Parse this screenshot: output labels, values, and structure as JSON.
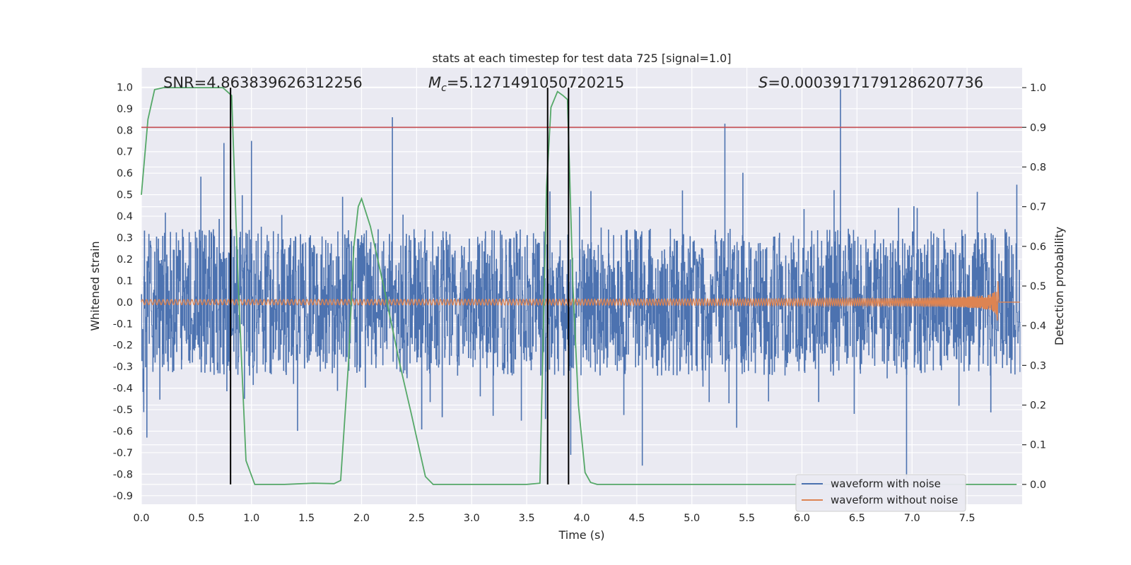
{
  "chart_data": {
    "type": "line",
    "title": "stats at each timestep for test data 725 [signal=1.0]",
    "xlabel": "Time (s)",
    "ylabel": "Whitened strain",
    "y2label": "Detection probability",
    "xlim": [
      0.0,
      8.0
    ],
    "ylim": [
      -0.94,
      1.09
    ],
    "y2lim": [
      -0.05,
      1.05
    ],
    "xticks": [
      "0.0",
      "0.5",
      "1.0",
      "1.5",
      "2.0",
      "2.5",
      "3.0",
      "3.5",
      "4.0",
      "4.5",
      "5.0",
      "5.5",
      "6.0",
      "6.5",
      "7.0",
      "7.5"
    ],
    "yticks": [
      "1.0",
      "0.9",
      "0.8",
      "0.7",
      "0.6",
      "0.5",
      "0.4",
      "0.3",
      "0.2",
      "0.1",
      "0.0",
      "-0.1",
      "-0.2",
      "-0.3",
      "-0.4",
      "-0.5",
      "-0.6",
      "-0.7",
      "-0.8",
      "-0.9"
    ],
    "y2ticks": [
      "1.0",
      "0.9",
      "0.8",
      "0.7",
      "0.6",
      "0.5",
      "0.4",
      "0.3",
      "0.2",
      "0.1",
      "0.0"
    ],
    "grid": true,
    "legend_position": "lower-right",
    "annotations": {
      "snr": "SNR=4.863839626312256",
      "mc_symbol": "M",
      "mc_sub": "c",
      "mc_value": "=5.1271491050720215",
      "s_symbol": "S",
      "s_value": "=0.00039171791286207736"
    },
    "threshold_probability": 0.9,
    "vertical_lines_x": [
      0.81,
      3.69,
      3.88
    ],
    "series": [
      {
        "name": "waveform with noise",
        "color": "#4c72b0",
        "description_kind": "noise",
        "amplitude_envelope": 0.3,
        "peaks": [
          {
            "x": 0.75,
            "y": 0.74
          },
          {
            "x": 1.0,
            "y": 0.75
          },
          {
            "x": 2.28,
            "y": 0.86
          },
          {
            "x": 5.3,
            "y": 0.83
          },
          {
            "x": 6.35,
            "y": 0.99
          },
          {
            "x": 6.95,
            "y": -0.82
          },
          {
            "x": 0.05,
            "y": -0.63
          },
          {
            "x": 3.9,
            "y": -0.71
          },
          {
            "x": 4.55,
            "y": -0.76
          }
        ]
      },
      {
        "name": "waveform without noise",
        "color": "#dd8452",
        "chirp_end_x": 7.78,
        "chirp_peak": 0.1
      },
      {
        "name": "detection probability",
        "color": "#55a868",
        "axis": "right",
        "x": [
          0.0,
          0.06,
          0.12,
          0.2,
          0.3,
          0.45,
          0.6,
          0.74,
          0.82,
          0.88,
          0.95,
          1.03,
          1.1,
          1.3,
          1.56,
          1.75,
          1.81,
          1.88,
          1.93,
          1.97,
          2.0,
          2.08,
          2.2,
          2.35,
          2.45,
          2.58,
          2.65,
          3.0,
          3.5,
          3.62,
          3.68,
          3.72,
          3.78,
          3.83,
          3.87,
          3.92,
          3.97,
          4.03,
          4.08,
          4.14,
          4.4,
          5.0,
          6.0,
          7.0,
          7.95
        ],
        "y": [
          0.73,
          0.92,
          0.995,
          1.0,
          1.0,
          1.0,
          1.0,
          1.0,
          0.98,
          0.5,
          0.06,
          0.0,
          0.0,
          0.0,
          0.003,
          0.002,
          0.01,
          0.3,
          0.6,
          0.7,
          0.72,
          0.65,
          0.5,
          0.3,
          0.18,
          0.02,
          0.0,
          0.0,
          0.0,
          0.003,
          0.75,
          0.95,
          0.99,
          0.98,
          0.97,
          0.5,
          0.2,
          0.03,
          0.005,
          0.0,
          0.0,
          0.0,
          0.0,
          0.0,
          0.0
        ]
      },
      {
        "name": "threshold",
        "color": "#c44e52",
        "axis": "right"
      }
    ]
  },
  "legend": {
    "items": [
      {
        "label": "waveform with noise",
        "color": "#4c72b0"
      },
      {
        "label": "waveform without noise",
        "color": "#dd8452"
      }
    ]
  },
  "colors": {
    "plot_background": "#eaeaf2",
    "grid": "#ffffff",
    "vline": "#000000"
  }
}
